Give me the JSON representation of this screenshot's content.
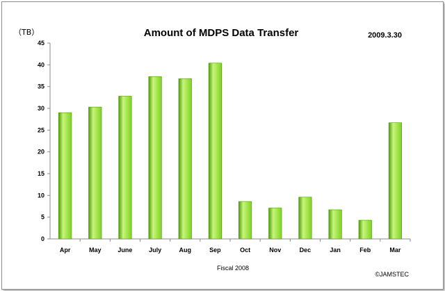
{
  "chart_data": {
    "type": "bar",
    "title": "Amount of MDPS Data Transfer",
    "date": "2009.3.30",
    "y_unit": "（TB）",
    "xlabel": "Fiscal 2008",
    "ylabel": "",
    "credit": "©JAMSTEC",
    "categories": [
      "Apr",
      "May",
      "June",
      "July",
      "Aug",
      "Sep",
      "Oct",
      "Nov",
      "Dec",
      "Jan",
      "Feb",
      "Mar"
    ],
    "values": [
      29.0,
      30.3,
      32.8,
      37.3,
      36.8,
      40.4,
      8.6,
      7.1,
      9.6,
      6.7,
      4.3,
      26.7
    ],
    "ylim": [
      0,
      45
    ],
    "yticks": [
      0,
      5,
      10,
      15,
      20,
      25,
      30,
      35,
      40,
      45
    ],
    "grid": false,
    "legend": "none",
    "bar_color": "#7ed321",
    "bar_highlight": "#c8f57a",
    "bar_shadow": "#4f9a10"
  }
}
